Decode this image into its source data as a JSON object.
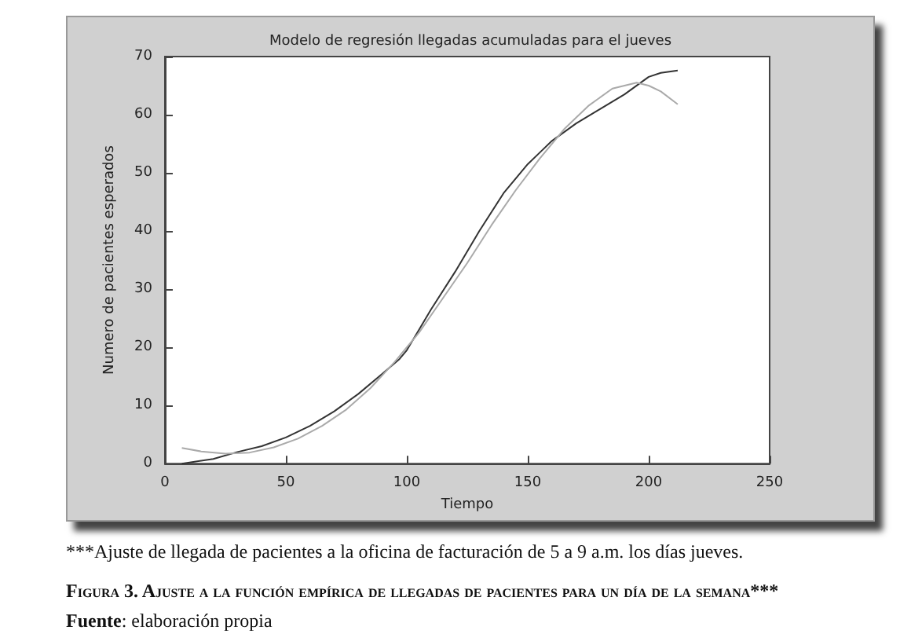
{
  "chart_data": {
    "type": "line",
    "title": "Modelo de regresión llegadas acumuladas para el jueves",
    "xlabel": "Tiempo",
    "ylabel": "Numero de pacientes esperados",
    "xlim": [
      0,
      250
    ],
    "xticks": [
      0,
      50,
      100,
      150,
      200,
      250
    ],
    "ylim": [
      0,
      70
    ],
    "yticks": [
      0,
      10,
      20,
      30,
      40,
      50,
      60,
      70
    ],
    "marker": "none",
    "line_style": "solid",
    "series": [
      {
        "color": "#333333",
        "x": [
          7,
          15,
          20,
          30,
          40,
          50,
          60,
          70,
          80,
          90,
          97,
          100,
          105,
          110,
          120,
          130,
          140,
          150,
          155,
          160,
          170,
          180,
          190,
          200,
          205,
          212
        ],
        "values": [
          0,
          0.5,
          0.8,
          2,
          3,
          4.5,
          6.5,
          9,
          12,
          15.5,
          18,
          19.5,
          23,
          26.5,
          33,
          40,
          46.5,
          51.5,
          53.5,
          55.5,
          58.5,
          61,
          63.5,
          66.5,
          67.2,
          67.6
        ]
      },
      {
        "color": "#aaaaaa",
        "x": [
          7,
          15,
          25,
          35,
          45,
          55,
          65,
          75,
          85,
          95,
          105,
          115,
          125,
          135,
          145,
          155,
          165,
          175,
          185,
          195,
          200,
          205,
          212
        ],
        "values": [
          2.7,
          2.1,
          1.7,
          1.9,
          2.8,
          4.3,
          6.5,
          9.3,
          13,
          17.5,
          22.5,
          28.5,
          34.5,
          41,
          47,
          52.5,
          57.5,
          61.5,
          64.5,
          65.5,
          65,
          64,
          61.8
        ]
      }
    ],
    "annotations": [
      "***Ajuste de llegada de pacientes a la oficina de facturación de 5 a 9 a.m. los días jueves.",
      "Figura 3. Ajuste a la función empírica de llegadas de pacientes para un día de la semana***",
      "Fuente: elaboración propia"
    ]
  }
}
